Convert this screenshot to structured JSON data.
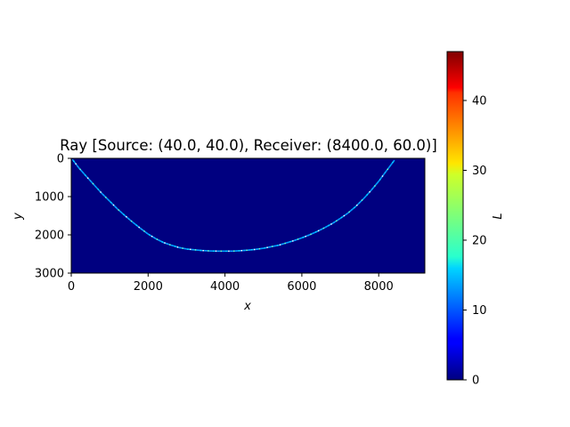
{
  "chart_data": {
    "type": "heatmap",
    "title": "Ray [Source: (40.0, 40.0), Receiver: (8400.0, 60.0)]",
    "xlabel": "x",
    "ylabel": "y",
    "xlim": [
      0,
      9200
    ],
    "ylim": [
      3000,
      0
    ],
    "y_inverted": true,
    "x_ticks": [
      0,
      2000,
      4000,
      6000,
      8000
    ],
    "y_ticks": [
      0,
      1000,
      2000,
      3000
    ],
    "background_value": 0,
    "ray_path": {
      "source": [
        40.0,
        40.0
      ],
      "receiver": [
        8400.0,
        60.0
      ],
      "points_xy": [
        [
          40,
          40
        ],
        [
          200,
          250
        ],
        [
          400,
          480
        ],
        [
          600,
          700
        ],
        [
          800,
          920
        ],
        [
          1000,
          1120
        ],
        [
          1200,
          1320
        ],
        [
          1400,
          1500
        ],
        [
          1600,
          1670
        ],
        [
          1800,
          1830
        ],
        [
          2000,
          1980
        ],
        [
          2200,
          2100
        ],
        [
          2400,
          2200
        ],
        [
          2600,
          2270
        ],
        [
          2800,
          2330
        ],
        [
          3000,
          2370
        ],
        [
          3200,
          2390
        ],
        [
          3400,
          2410
        ],
        [
          3600,
          2420
        ],
        [
          3800,
          2425
        ],
        [
          4000,
          2425
        ],
        [
          4200,
          2425
        ],
        [
          4400,
          2415
        ],
        [
          4600,
          2400
        ],
        [
          4800,
          2380
        ],
        [
          5000,
          2350
        ],
        [
          5200,
          2310
        ],
        [
          5400,
          2270
        ],
        [
          5600,
          2210
        ],
        [
          5800,
          2150
        ],
        [
          6000,
          2080
        ],
        [
          6200,
          2000
        ],
        [
          6400,
          1910
        ],
        [
          6600,
          1810
        ],
        [
          6800,
          1700
        ],
        [
          7000,
          1570
        ],
        [
          7200,
          1430
        ],
        [
          7400,
          1260
        ],
        [
          7600,
          1060
        ],
        [
          7800,
          840
        ],
        [
          8000,
          600
        ],
        [
          8200,
          330
        ],
        [
          8400,
          60
        ]
      ],
      "typical_value": 13
    },
    "colorbar": {
      "colormap": "jet",
      "label": "L",
      "range": [
        0,
        47
      ],
      "ticks": [
        0,
        10,
        20,
        30,
        40
      ]
    }
  }
}
